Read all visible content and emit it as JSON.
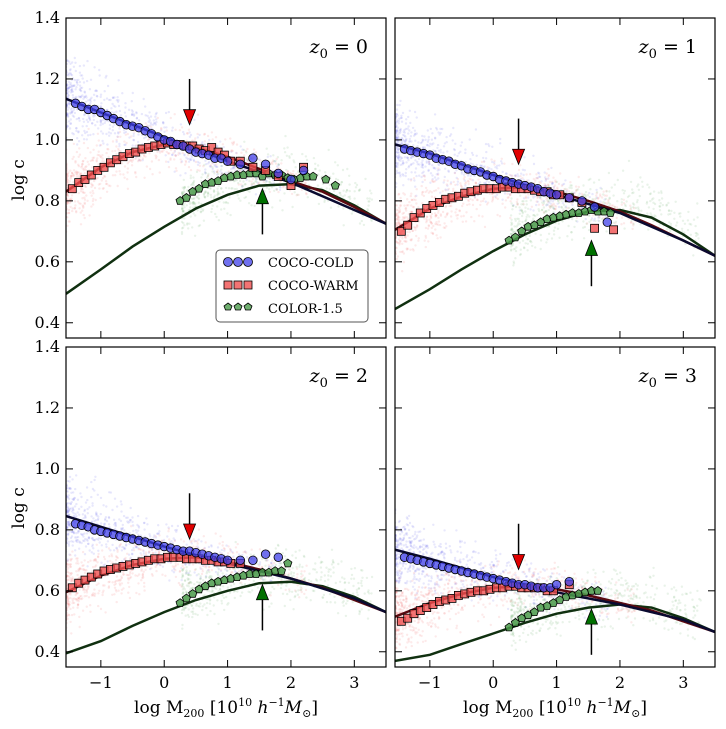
{
  "chart_data": {
    "type": "scatter",
    "xlabel": "log M$_{200}$ [10$^{10}$ h$^{-1}$M$_\\odot$]",
    "xlabel_text": "log M",
    "xlabel_sub": "200",
    "xlabel_unit": " [10",
    "xlabel_exp1": "10",
    "xlabel_h": " h",
    "xlabel_exp2": "−1",
    "xlabel_M": "M",
    "xlabel_sun": "⊙",
    "xlabel_close": "]",
    "ylabel": "log c",
    "xlim": [
      -1.55,
      3.5
    ],
    "ylim": [
      0.35,
      1.4
    ],
    "xticks": [
      -1,
      0,
      1,
      2,
      3
    ],
    "xtick_labels": [
      "−1",
      "0",
      "1",
      "2",
      "3"
    ],
    "yticks": [
      0.4,
      0.6,
      0.8,
      1.0,
      1.2,
      1.4
    ],
    "ytick_labels": [
      "0.4",
      "0.6",
      "0.8",
      "1.0",
      "1.2",
      "1.4"
    ],
    "legend": {
      "location": "lower-right of top-left panel",
      "entries": [
        "COCO-COLD",
        "COCO-WARM",
        "COLOR-1.5"
      ]
    },
    "colors": {
      "cold": "#4040e8",
      "warm": "#f05050",
      "color": "#4a9a4a",
      "cold_line": "#0a0a30",
      "warm_line": "#5a0a10",
      "color_line": "#103010",
      "down_arrow": "#e00000",
      "up_arrow": "#007000"
    },
    "panels": [
      {
        "label": "z₀ = 0",
        "label_z": "z",
        "label_sub": "0",
        "label_eq": " = 0",
        "down_arrow_x": 0.4,
        "down_arrow_from": 1.2,
        "down_arrow_to": 1.05,
        "up_arrow_x": 1.55,
        "up_arrow_from": 0.69,
        "up_arrow_to": 0.84,
        "cold_line": {
          "x": [
            -1.55,
            -1,
            0,
            1,
            2,
            3,
            3.5
          ],
          "y": [
            1.135,
            1.09,
            1.01,
            0.93,
            0.86,
            0.77,
            0.725
          ]
        },
        "warm_line": {
          "x": [
            -1.55,
            -1,
            -0.5,
            0,
            0.5,
            1,
            1.5,
            2,
            2.5,
            3,
            3.5
          ],
          "y": [
            0.83,
            0.91,
            0.96,
            0.985,
            0.975,
            0.945,
            0.905,
            0.865,
            0.83,
            0.78,
            0.725
          ]
        },
        "color_line": {
          "x": [
            -1.55,
            -1,
            -0.5,
            0,
            0.5,
            1,
            1.5,
            2,
            2.5,
            3,
            3.5
          ],
          "y": [
            0.495,
            0.575,
            0.65,
            0.715,
            0.775,
            0.82,
            0.85,
            0.855,
            0.835,
            0.785,
            0.725
          ]
        },
        "cold_points": {
          "x": [
            -1.4,
            -1.3,
            -1.2,
            -1.1,
            -1.0,
            -0.9,
            -0.8,
            -0.7,
            -0.6,
            -0.5,
            -0.4,
            -0.3,
            -0.2,
            -0.1,
            0.0,
            0.1,
            0.2,
            0.3,
            0.4,
            0.5,
            0.6,
            0.7,
            0.8,
            0.9,
            1.0,
            1.2,
            1.4,
            1.6,
            1.8,
            2.0,
            2.2
          ],
          "y": [
            1.12,
            1.11,
            1.1,
            1.1,
            1.09,
            1.08,
            1.07,
            1.06,
            1.05,
            1.045,
            1.04,
            1.03,
            1.02,
            1.01,
            1.0,
            0.995,
            0.985,
            0.98,
            0.97,
            0.96,
            0.955,
            0.95,
            0.94,
            0.94,
            0.93,
            0.92,
            0.94,
            0.92,
            0.89,
            0.87,
            0.9
          ]
        },
        "warm_points": {
          "x": [
            -1.45,
            -1.35,
            -1.25,
            -1.15,
            -1.05,
            -0.95,
            -0.85,
            -0.75,
            -0.65,
            -0.55,
            -0.45,
            -0.35,
            -0.25,
            -0.15,
            -0.05,
            0.05,
            0.15,
            0.25,
            0.35,
            0.45,
            0.55,
            0.65,
            0.75,
            0.85,
            0.95,
            1.05,
            1.2,
            1.4,
            1.6,
            1.8,
            2.0,
            2.2
          ],
          "y": [
            0.84,
            0.86,
            0.87,
            0.885,
            0.9,
            0.91,
            0.925,
            0.935,
            0.945,
            0.955,
            0.96,
            0.97,
            0.975,
            0.98,
            0.985,
            0.99,
            0.985,
            0.985,
            0.98,
            0.98,
            0.97,
            0.965,
            0.975,
            0.96,
            0.95,
            0.93,
            0.93,
            0.91,
            0.9,
            0.88,
            0.85,
            0.91
          ]
        },
        "color_points": {
          "x": [
            0.25,
            0.35,
            0.45,
            0.55,
            0.65,
            0.75,
            0.85,
            0.95,
            1.05,
            1.15,
            1.25,
            1.35,
            1.45,
            1.55,
            1.65,
            1.75,
            1.85,
            1.95,
            2.05,
            2.15,
            2.25,
            2.35,
            2.55,
            2.7
          ],
          "y": [
            0.8,
            0.81,
            0.83,
            0.84,
            0.855,
            0.86,
            0.865,
            0.875,
            0.88,
            0.885,
            0.885,
            0.89,
            0.89,
            0.88,
            0.89,
            0.885,
            0.885,
            0.875,
            0.87,
            0.875,
            0.88,
            0.88,
            0.87,
            0.85
          ]
        }
      },
      {
        "label": "z₀ = 1",
        "label_z": "z",
        "label_sub": "0",
        "label_eq": " = 1",
        "down_arrow_x": 0.4,
        "down_arrow_from": 1.07,
        "down_arrow_to": 0.92,
        "up_arrow_x": 1.55,
        "up_arrow_from": 0.52,
        "up_arrow_to": 0.67,
        "cold_line": {
          "x": [
            -1.55,
            -1,
            0,
            1,
            2,
            3,
            3.5
          ],
          "y": [
            0.985,
            0.955,
            0.885,
            0.82,
            0.76,
            0.67,
            0.62
          ]
        },
        "warm_line": {
          "x": [
            -1.55,
            -1,
            -0.5,
            0,
            0.5,
            1,
            1.5,
            2,
            2.5,
            3,
            3.5
          ],
          "y": [
            0.705,
            0.775,
            0.815,
            0.84,
            0.845,
            0.83,
            0.8,
            0.765,
            0.72,
            0.67,
            0.62
          ]
        },
        "color_line": {
          "x": [
            -1.55,
            -1,
            -0.5,
            0,
            0.5,
            1,
            1.5,
            2,
            2.5,
            3,
            3.5
          ],
          "y": [
            0.445,
            0.51,
            0.575,
            0.635,
            0.69,
            0.735,
            0.765,
            0.77,
            0.745,
            0.69,
            0.62
          ]
        },
        "cold_points": {
          "x": [
            -1.4,
            -1.3,
            -1.2,
            -1.1,
            -1.0,
            -0.9,
            -0.8,
            -0.7,
            -0.6,
            -0.5,
            -0.4,
            -0.3,
            -0.2,
            -0.1,
            0.0,
            0.1,
            0.2,
            0.3,
            0.4,
            0.5,
            0.6,
            0.7,
            0.8,
            0.9,
            1.0,
            1.2,
            1.4,
            1.6,
            1.8
          ],
          "y": [
            0.97,
            0.965,
            0.96,
            0.955,
            0.95,
            0.94,
            0.935,
            0.93,
            0.92,
            0.915,
            0.905,
            0.9,
            0.895,
            0.885,
            0.88,
            0.87,
            0.865,
            0.86,
            0.855,
            0.85,
            0.845,
            0.84,
            0.83,
            0.825,
            0.82,
            0.81,
            0.8,
            0.78,
            0.73
          ]
        },
        "warm_points": {
          "x": [
            -1.45,
            -1.35,
            -1.25,
            -1.15,
            -1.05,
            -0.95,
            -0.85,
            -0.75,
            -0.65,
            -0.55,
            -0.45,
            -0.35,
            -0.25,
            -0.15,
            -0.05,
            0.05,
            0.15,
            0.25,
            0.35,
            0.45,
            0.55,
            0.65,
            0.75,
            0.85,
            0.95,
            1.05,
            1.2,
            1.4,
            1.6,
            1.9
          ],
          "y": [
            0.7,
            0.72,
            0.745,
            0.76,
            0.775,
            0.785,
            0.795,
            0.805,
            0.81,
            0.815,
            0.825,
            0.83,
            0.835,
            0.84,
            0.84,
            0.84,
            0.845,
            0.845,
            0.84,
            0.84,
            0.84,
            0.835,
            0.83,
            0.83,
            0.82,
            0.82,
            0.81,
            0.795,
            0.71,
            0.705
          ]
        },
        "color_points": {
          "x": [
            0.25,
            0.35,
            0.45,
            0.55,
            0.65,
            0.75,
            0.85,
            0.95,
            1.05,
            1.15,
            1.25,
            1.35,
            1.45,
            1.55,
            1.65,
            1.75,
            1.85
          ],
          "y": [
            0.67,
            0.68,
            0.7,
            0.715,
            0.72,
            0.73,
            0.74,
            0.745,
            0.75,
            0.755,
            0.76,
            0.76,
            0.765,
            0.77,
            0.765,
            0.765,
            0.76
          ]
        }
      },
      {
        "label": "z₀ = 2",
        "label_z": "z",
        "label_sub": "0",
        "label_eq": " = 2",
        "down_arrow_x": 0.4,
        "down_arrow_from": 0.92,
        "down_arrow_to": 0.77,
        "up_arrow_x": 1.55,
        "up_arrow_from": 0.47,
        "up_arrow_to": 0.62,
        "cold_line": {
          "x": [
            -1.55,
            -1,
            0,
            1,
            2,
            3,
            3.5
          ],
          "y": [
            0.845,
            0.81,
            0.745,
            0.69,
            0.64,
            0.575,
            0.53
          ]
        },
        "warm_line": {
          "x": [
            -1.55,
            -1,
            -0.5,
            0,
            0.5,
            1,
            1.5,
            2,
            2.5,
            3,
            3.5
          ],
          "y": [
            0.595,
            0.65,
            0.685,
            0.705,
            0.71,
            0.695,
            0.67,
            0.64,
            0.61,
            0.57,
            0.53
          ]
        },
        "color_line": {
          "x": [
            -1.55,
            -1,
            -0.5,
            0,
            0.5,
            1,
            1.5,
            2,
            2.5,
            3,
            3.5
          ],
          "y": [
            0.395,
            0.435,
            0.485,
            0.53,
            0.57,
            0.6,
            0.625,
            0.63,
            0.615,
            0.58,
            0.53
          ]
        },
        "cold_points": {
          "x": [
            -1.4,
            -1.3,
            -1.2,
            -1.1,
            -1.0,
            -0.9,
            -0.8,
            -0.7,
            -0.6,
            -0.5,
            -0.4,
            -0.3,
            -0.2,
            -0.1,
            0.0,
            0.1,
            0.2,
            0.3,
            0.4,
            0.5,
            0.6,
            0.7,
            0.8,
            0.9,
            1.0,
            1.2,
            1.4,
            1.6,
            1.8
          ],
          "y": [
            0.82,
            0.815,
            0.81,
            0.8,
            0.795,
            0.79,
            0.785,
            0.78,
            0.775,
            0.77,
            0.765,
            0.76,
            0.755,
            0.75,
            0.745,
            0.74,
            0.735,
            0.73,
            0.73,
            0.725,
            0.72,
            0.715,
            0.71,
            0.705,
            0.7,
            0.7,
            0.7,
            0.72,
            0.71
          ]
        },
        "warm_points": {
          "x": [
            -1.45,
            -1.35,
            -1.25,
            -1.15,
            -1.05,
            -0.95,
            -0.85,
            -0.75,
            -0.65,
            -0.55,
            -0.45,
            -0.35,
            -0.25,
            -0.15,
            -0.05,
            0.05,
            0.15,
            0.25,
            0.35,
            0.45,
            0.55,
            0.65,
            0.75,
            0.85,
            0.95,
            1.05,
            1.2
          ],
          "y": [
            0.61,
            0.625,
            0.635,
            0.645,
            0.655,
            0.665,
            0.67,
            0.675,
            0.68,
            0.685,
            0.69,
            0.695,
            0.7,
            0.705,
            0.705,
            0.71,
            0.71,
            0.71,
            0.705,
            0.705,
            0.705,
            0.7,
            0.7,
            0.695,
            0.695,
            0.69,
            0.69
          ]
        },
        "color_points": {
          "x": [
            0.25,
            0.35,
            0.45,
            0.55,
            0.65,
            0.75,
            0.85,
            0.95,
            1.05,
            1.15,
            1.25,
            1.35,
            1.45,
            1.55,
            1.65,
            1.75,
            1.85,
            1.95
          ],
          "y": [
            0.56,
            0.575,
            0.59,
            0.605,
            0.615,
            0.625,
            0.63,
            0.635,
            0.64,
            0.645,
            0.65,
            0.655,
            0.655,
            0.66,
            0.66,
            0.665,
            0.665,
            0.69
          ]
        }
      },
      {
        "label": "z₀ = 3",
        "label_z": "z",
        "label_sub": "0",
        "label_eq": " = 3",
        "down_arrow_x": 0.4,
        "down_arrow_from": 0.82,
        "down_arrow_to": 0.67,
        "up_arrow_x": 1.55,
        "up_arrow_from": 0.39,
        "up_arrow_to": 0.54,
        "cold_line": {
          "x": [
            -1.55,
            -1,
            0,
            1,
            2,
            3,
            3.5
          ],
          "y": [
            0.735,
            0.705,
            0.645,
            0.595,
            0.555,
            0.505,
            0.465
          ]
        },
        "warm_line": {
          "x": [
            -1.55,
            -1,
            -0.5,
            0,
            0.5,
            1,
            1.5,
            2,
            2.5,
            3,
            3.5
          ],
          "y": [
            0.515,
            0.56,
            0.59,
            0.61,
            0.615,
            0.605,
            0.585,
            0.56,
            0.535,
            0.5,
            0.465
          ]
        },
        "color_line": {
          "x": [
            -1.55,
            -1,
            -0.5,
            0,
            0.5,
            1,
            1.5,
            2,
            2.5,
            3,
            3.5
          ],
          "y": [
            0.37,
            0.39,
            0.425,
            0.46,
            0.495,
            0.525,
            0.545,
            0.555,
            0.545,
            0.51,
            0.465
          ]
        },
        "cold_points": {
          "x": [
            -1.4,
            -1.3,
            -1.2,
            -1.1,
            -1.0,
            -0.9,
            -0.8,
            -0.7,
            -0.6,
            -0.5,
            -0.4,
            -0.3,
            -0.2,
            -0.1,
            0.0,
            0.1,
            0.2,
            0.3,
            0.4,
            0.5,
            0.6,
            0.7,
            0.8,
            0.9,
            1.0,
            1.2
          ],
          "y": [
            0.71,
            0.705,
            0.7,
            0.695,
            0.69,
            0.685,
            0.68,
            0.675,
            0.67,
            0.665,
            0.66,
            0.655,
            0.65,
            0.645,
            0.64,
            0.635,
            0.63,
            0.625,
            0.62,
            0.62,
            0.615,
            0.61,
            0.61,
            0.61,
            0.62,
            0.63
          ]
        },
        "warm_points": {
          "x": [
            -1.45,
            -1.35,
            -1.25,
            -1.15,
            -1.05,
            -0.95,
            -0.85,
            -0.75,
            -0.65,
            -0.55,
            -0.45,
            -0.35,
            -0.25,
            -0.15,
            -0.05,
            0.05,
            0.15,
            0.25,
            0.35,
            0.45,
            0.55,
            0.65,
            0.75,
            0.85,
            0.95,
            1.2
          ],
          "y": [
            0.5,
            0.51,
            0.525,
            0.535,
            0.545,
            0.555,
            0.565,
            0.57,
            0.575,
            0.585,
            0.59,
            0.595,
            0.6,
            0.6,
            0.605,
            0.61,
            0.61,
            0.615,
            0.615,
            0.61,
            0.61,
            0.61,
            0.61,
            0.6,
            0.6,
            0.62
          ]
        },
        "color_points": {
          "x": [
            0.25,
            0.35,
            0.45,
            0.55,
            0.65,
            0.75,
            0.85,
            0.95,
            1.05,
            1.15,
            1.25,
            1.35,
            1.45,
            1.55,
            1.65
          ],
          "y": [
            0.48,
            0.495,
            0.51,
            0.52,
            0.53,
            0.545,
            0.55,
            0.56,
            0.57,
            0.58,
            0.585,
            0.59,
            0.595,
            0.6,
            0.6
          ]
        }
      }
    ]
  }
}
